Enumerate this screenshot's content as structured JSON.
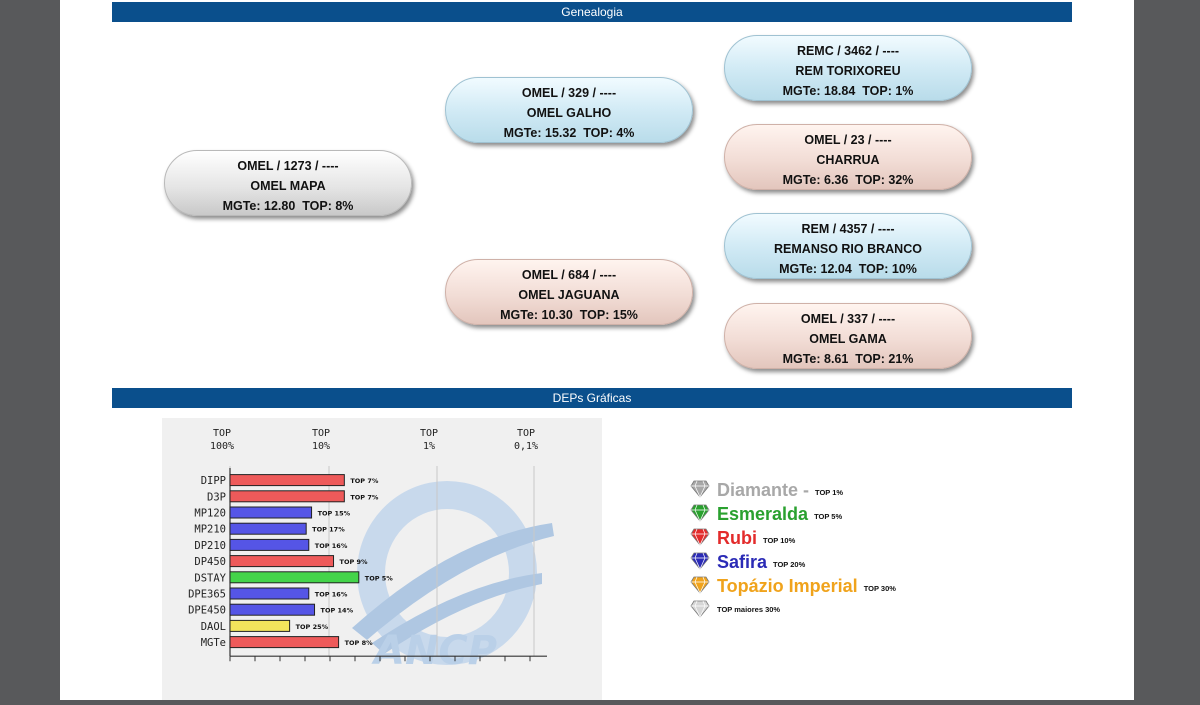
{
  "sections": {
    "genealogy_title": "Genealogia",
    "deps_title": "DEPs Gráficas"
  },
  "genealogy": {
    "sire": {
      "code": "OMEL / 1273 / ----",
      "name": "OMEL MAPA",
      "mgte": "MGTe: 12.80",
      "top": "TOP: 8%",
      "color": "gray"
    },
    "paternal_grandsire": {
      "code": "OMEL / 329 / ----",
      "name": "OMEL GALHO",
      "mgte": "MGTe: 15.32",
      "top": "TOP: 4%",
      "color": "blue"
    },
    "paternal_granddam": {
      "code": "OMEL / 684 / ----",
      "name": "OMEL JAGUANA",
      "mgte": "MGTe: 10.30",
      "top": "TOP: 15%",
      "color": "pink"
    },
    "ggs_1": {
      "code": "REMC / 3462 / ----",
      "name": "REM TORIXOREU",
      "mgte": "MGTe: 18.84",
      "top": "TOP: 1%",
      "color": "blue"
    },
    "ggd_1": {
      "code": "OMEL / 23 / ----",
      "name": "CHARRUA",
      "mgte": "MGTe: 6.36",
      "top": "TOP: 32%",
      "color": "pink"
    },
    "ggs_2": {
      "code": "REM / 4357 / ----",
      "name": "REMANSO RIO BRANCO",
      "mgte": "MGTe: 12.04",
      "top": "TOP: 10%",
      "color": "blue"
    },
    "ggd_2": {
      "code": "OMEL / 337 / ----",
      "name": "OMEL GAMA",
      "mgte": "MGTe: 8.61",
      "top": "TOP: 21%",
      "color": "pink"
    }
  },
  "chart_data": {
    "type": "bar",
    "orientation": "horizontal",
    "axis_top_labels": [
      "TOP\n100%",
      "TOP\n10%",
      "TOP\n1%",
      "TOP\n0,1%"
    ],
    "categories": [
      "DIPP",
      "D3P",
      "MP120",
      "MP210",
      "DP210",
      "DP450",
      "DSTAY",
      "DPE365",
      "DPE450",
      "DAOL",
      "MGTe"
    ],
    "values": [
      7,
      7,
      15,
      17,
      16,
      9,
      5,
      16,
      14,
      25,
      8
    ],
    "bar_labels": [
      "TOP 7%",
      "TOP 7%",
      "TOP 15%",
      "TOP 17%",
      "TOP 16%",
      "TOP 9%",
      "TOP 5%",
      "TOP 16%",
      "TOP 14%",
      "TOP 25%",
      "TOP 8%"
    ],
    "bar_colors": [
      "#ee5a5a",
      "#ee5a5a",
      "#5555e6",
      "#5555e6",
      "#5555e6",
      "#ee5a5a",
      "#44d44a",
      "#5555e6",
      "#5555e6",
      "#f2e45c",
      "#ee5a5a"
    ],
    "legend": true
  },
  "legend": [
    {
      "name": "Diamante",
      "sep": " -",
      "top": "TOP 1%",
      "color": "#a8a8a8",
      "icon": "gem-diamond-icon"
    },
    {
      "name": "Esmeralda",
      "sep": "",
      "top": "TOP 5%",
      "color": "#2aa12f",
      "icon": "gem-emerald-icon"
    },
    {
      "name": "Rubi",
      "sep": "",
      "top": "TOP 10%",
      "color": "#e32b2b",
      "icon": "gem-ruby-icon"
    },
    {
      "name": "Safira",
      "sep": "",
      "top": "TOP 20%",
      "color": "#2b2bb6",
      "icon": "gem-sapphire-icon"
    },
    {
      "name": "Topázio Imperial",
      "sep": "",
      "top": "TOP 30%",
      "color": "#f0a31c",
      "icon": "gem-topaz-icon"
    },
    {
      "name": "",
      "sep": "",
      "top": "TOP maiores 30%",
      "color": "#d6d6d6",
      "icon": "gem-plain-icon"
    }
  ],
  "watermark": "ANCP"
}
